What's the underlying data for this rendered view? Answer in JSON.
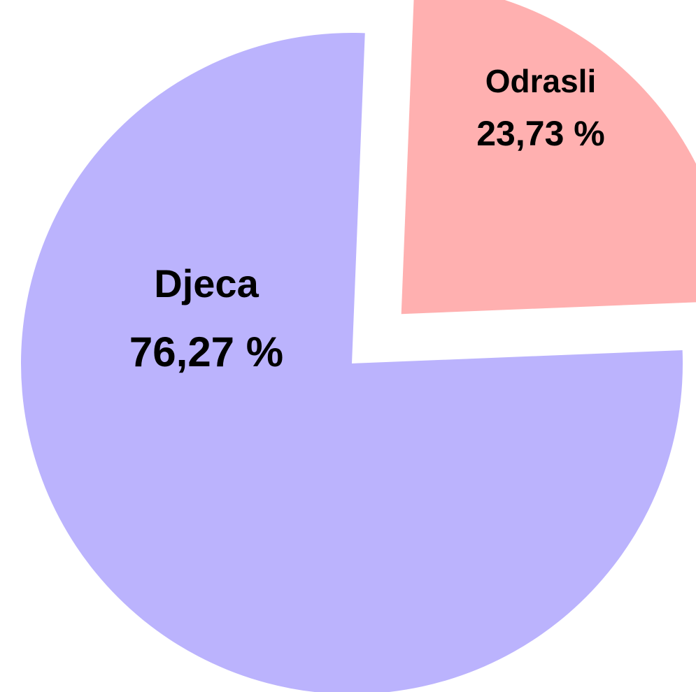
{
  "chart_data": {
    "type": "pie",
    "categories": [
      "Djeca",
      "Odrasli"
    ],
    "values": [
      76.27,
      23.73
    ],
    "value_labels": [
      "76,27 %",
      "23,73 %"
    ],
    "colors": [
      "#bbb3fd",
      "#ffb0b0"
    ]
  }
}
